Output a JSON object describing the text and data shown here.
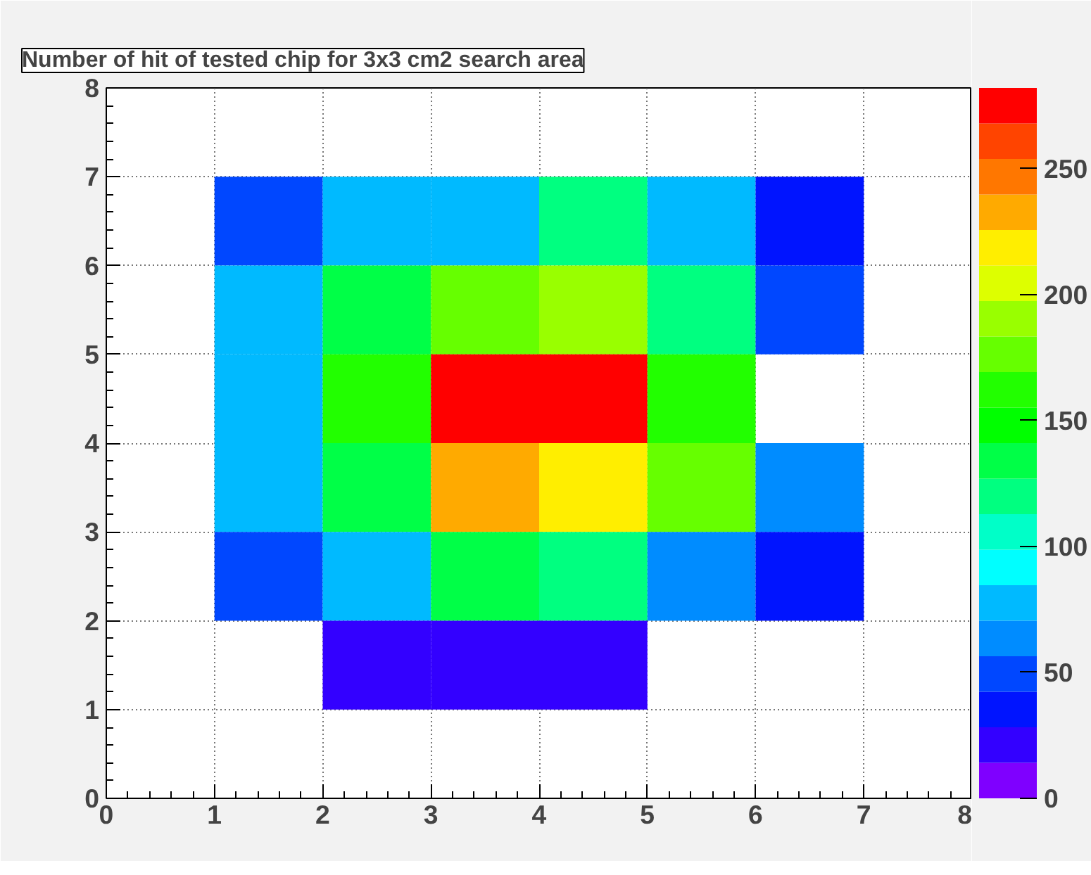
{
  "chart_data": {
    "type": "heatmap",
    "title": "Number of hit of tested chip for 3x3 cm2 search area",
    "x": [
      1.5,
      2.5,
      3.5,
      4.5,
      5.5,
      6.5
    ],
    "y": [
      6.5,
      5.5,
      4.5,
      3.5,
      2.5,
      1.5
    ],
    "cells": [
      [
        49,
        78,
        78,
        120,
        78,
        35
      ],
      [
        78,
        134,
        176,
        190,
        120,
        49
      ],
      [
        78,
        162,
        275,
        275,
        162,
        null
      ],
      [
        78,
        134,
        233,
        219,
        176,
        63
      ],
      [
        49,
        78,
        134,
        120,
        63,
        35
      ],
      [
        null,
        21,
        21,
        21,
        null,
        null
      ]
    ],
    "xlim": [
      0,
      8
    ],
    "xticks": [
      0,
      1,
      2,
      3,
      4,
      5,
      6,
      7,
      8
    ],
    "ylim": [
      0,
      8
    ],
    "yticks": [
      0,
      1,
      2,
      3,
      4,
      5,
      6,
      7,
      8
    ],
    "clim": [
      0,
      282
    ],
    "cticks": [
      0,
      50,
      100,
      150,
      200,
      250
    ],
    "grid": true
  }
}
